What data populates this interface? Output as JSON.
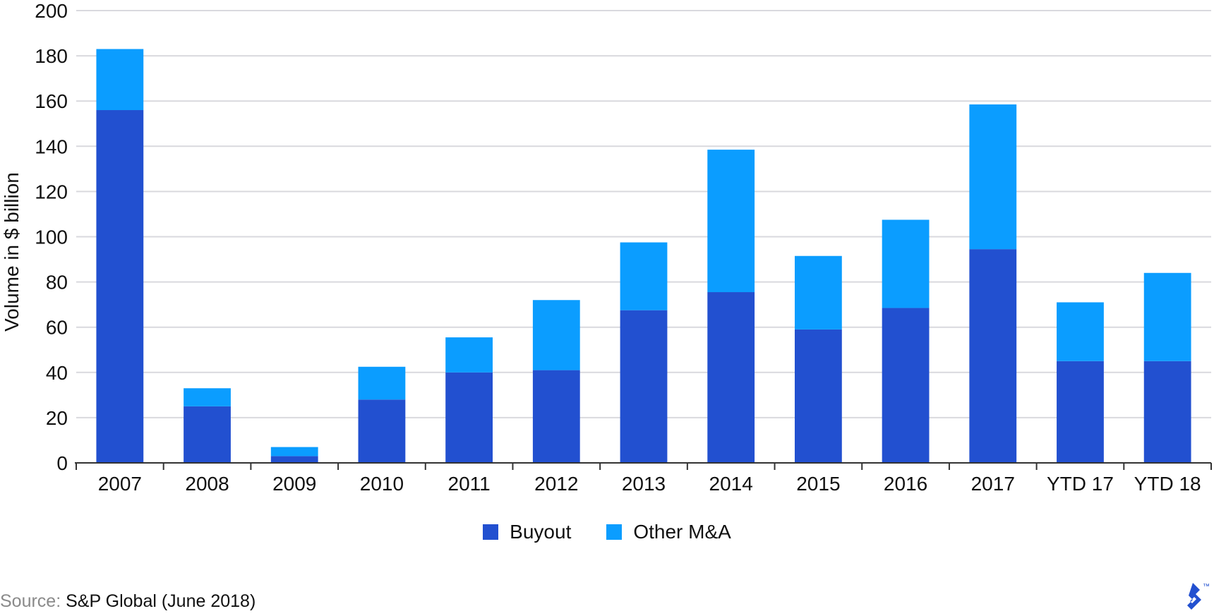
{
  "chart_data": {
    "type": "bar",
    "stacked": true,
    "title": "",
    "xlabel": "",
    "ylabel": "Volume in $ billion",
    "ylim": [
      0,
      200
    ],
    "yticks": [
      0,
      20,
      40,
      60,
      80,
      100,
      120,
      140,
      160,
      180,
      200
    ],
    "grid": true,
    "legend_position": "bottom-center",
    "categories": [
      "2007",
      "2008",
      "2009",
      "2010",
      "2011",
      "2012",
      "2013",
      "2014",
      "2015",
      "2016",
      "2017",
      "YTD 17",
      "YTD 18"
    ],
    "series": [
      {
        "name": "Buyout",
        "color": "#2250D0",
        "values": [
          156,
          25,
          3,
          28,
          40,
          41,
          67.5,
          75.5,
          59,
          68.5,
          94.5,
          45,
          45
        ]
      },
      {
        "name": "Other M&A",
        "color": "#0B9DFF",
        "values": [
          27,
          8,
          4,
          14.5,
          15.5,
          31,
          30,
          63,
          32.5,
          39,
          64,
          26,
          39
        ]
      }
    ]
  },
  "source": {
    "label": "Source:",
    "value": "S&P Global (June 2018)"
  },
  "logo": {
    "icon": "toptal-logo-icon",
    "trademark": "™",
    "color": "#2250D0"
  },
  "colors": {
    "gridline": "#D9D9DE",
    "axis": "#333333"
  }
}
